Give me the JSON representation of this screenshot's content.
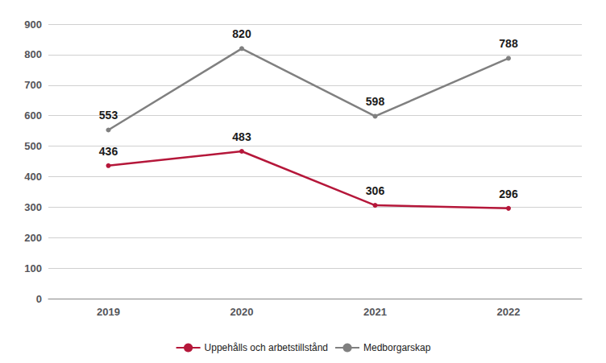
{
  "chart_data": {
    "type": "line",
    "x": [
      2019,
      2020,
      2021,
      2022
    ],
    "series": [
      {
        "name": "Uppehålls och arbetstillstånd",
        "color": "#b5173a",
        "values": [
          436,
          483,
          306,
          296
        ]
      },
      {
        "name": "Medborgarskap",
        "color": "#808080",
        "values": [
          553,
          820,
          598,
          788
        ]
      }
    ],
    "xlim": [
      2018.55,
      2022.55
    ],
    "xticks": [
      2019,
      2020,
      2021,
      2022
    ],
    "ylim": [
      0,
      900
    ],
    "yticks": [
      0,
      100,
      200,
      300,
      400,
      500,
      600,
      700,
      800,
      900
    ],
    "grid": true,
    "legend": "bottom",
    "data_labels": true
  }
}
